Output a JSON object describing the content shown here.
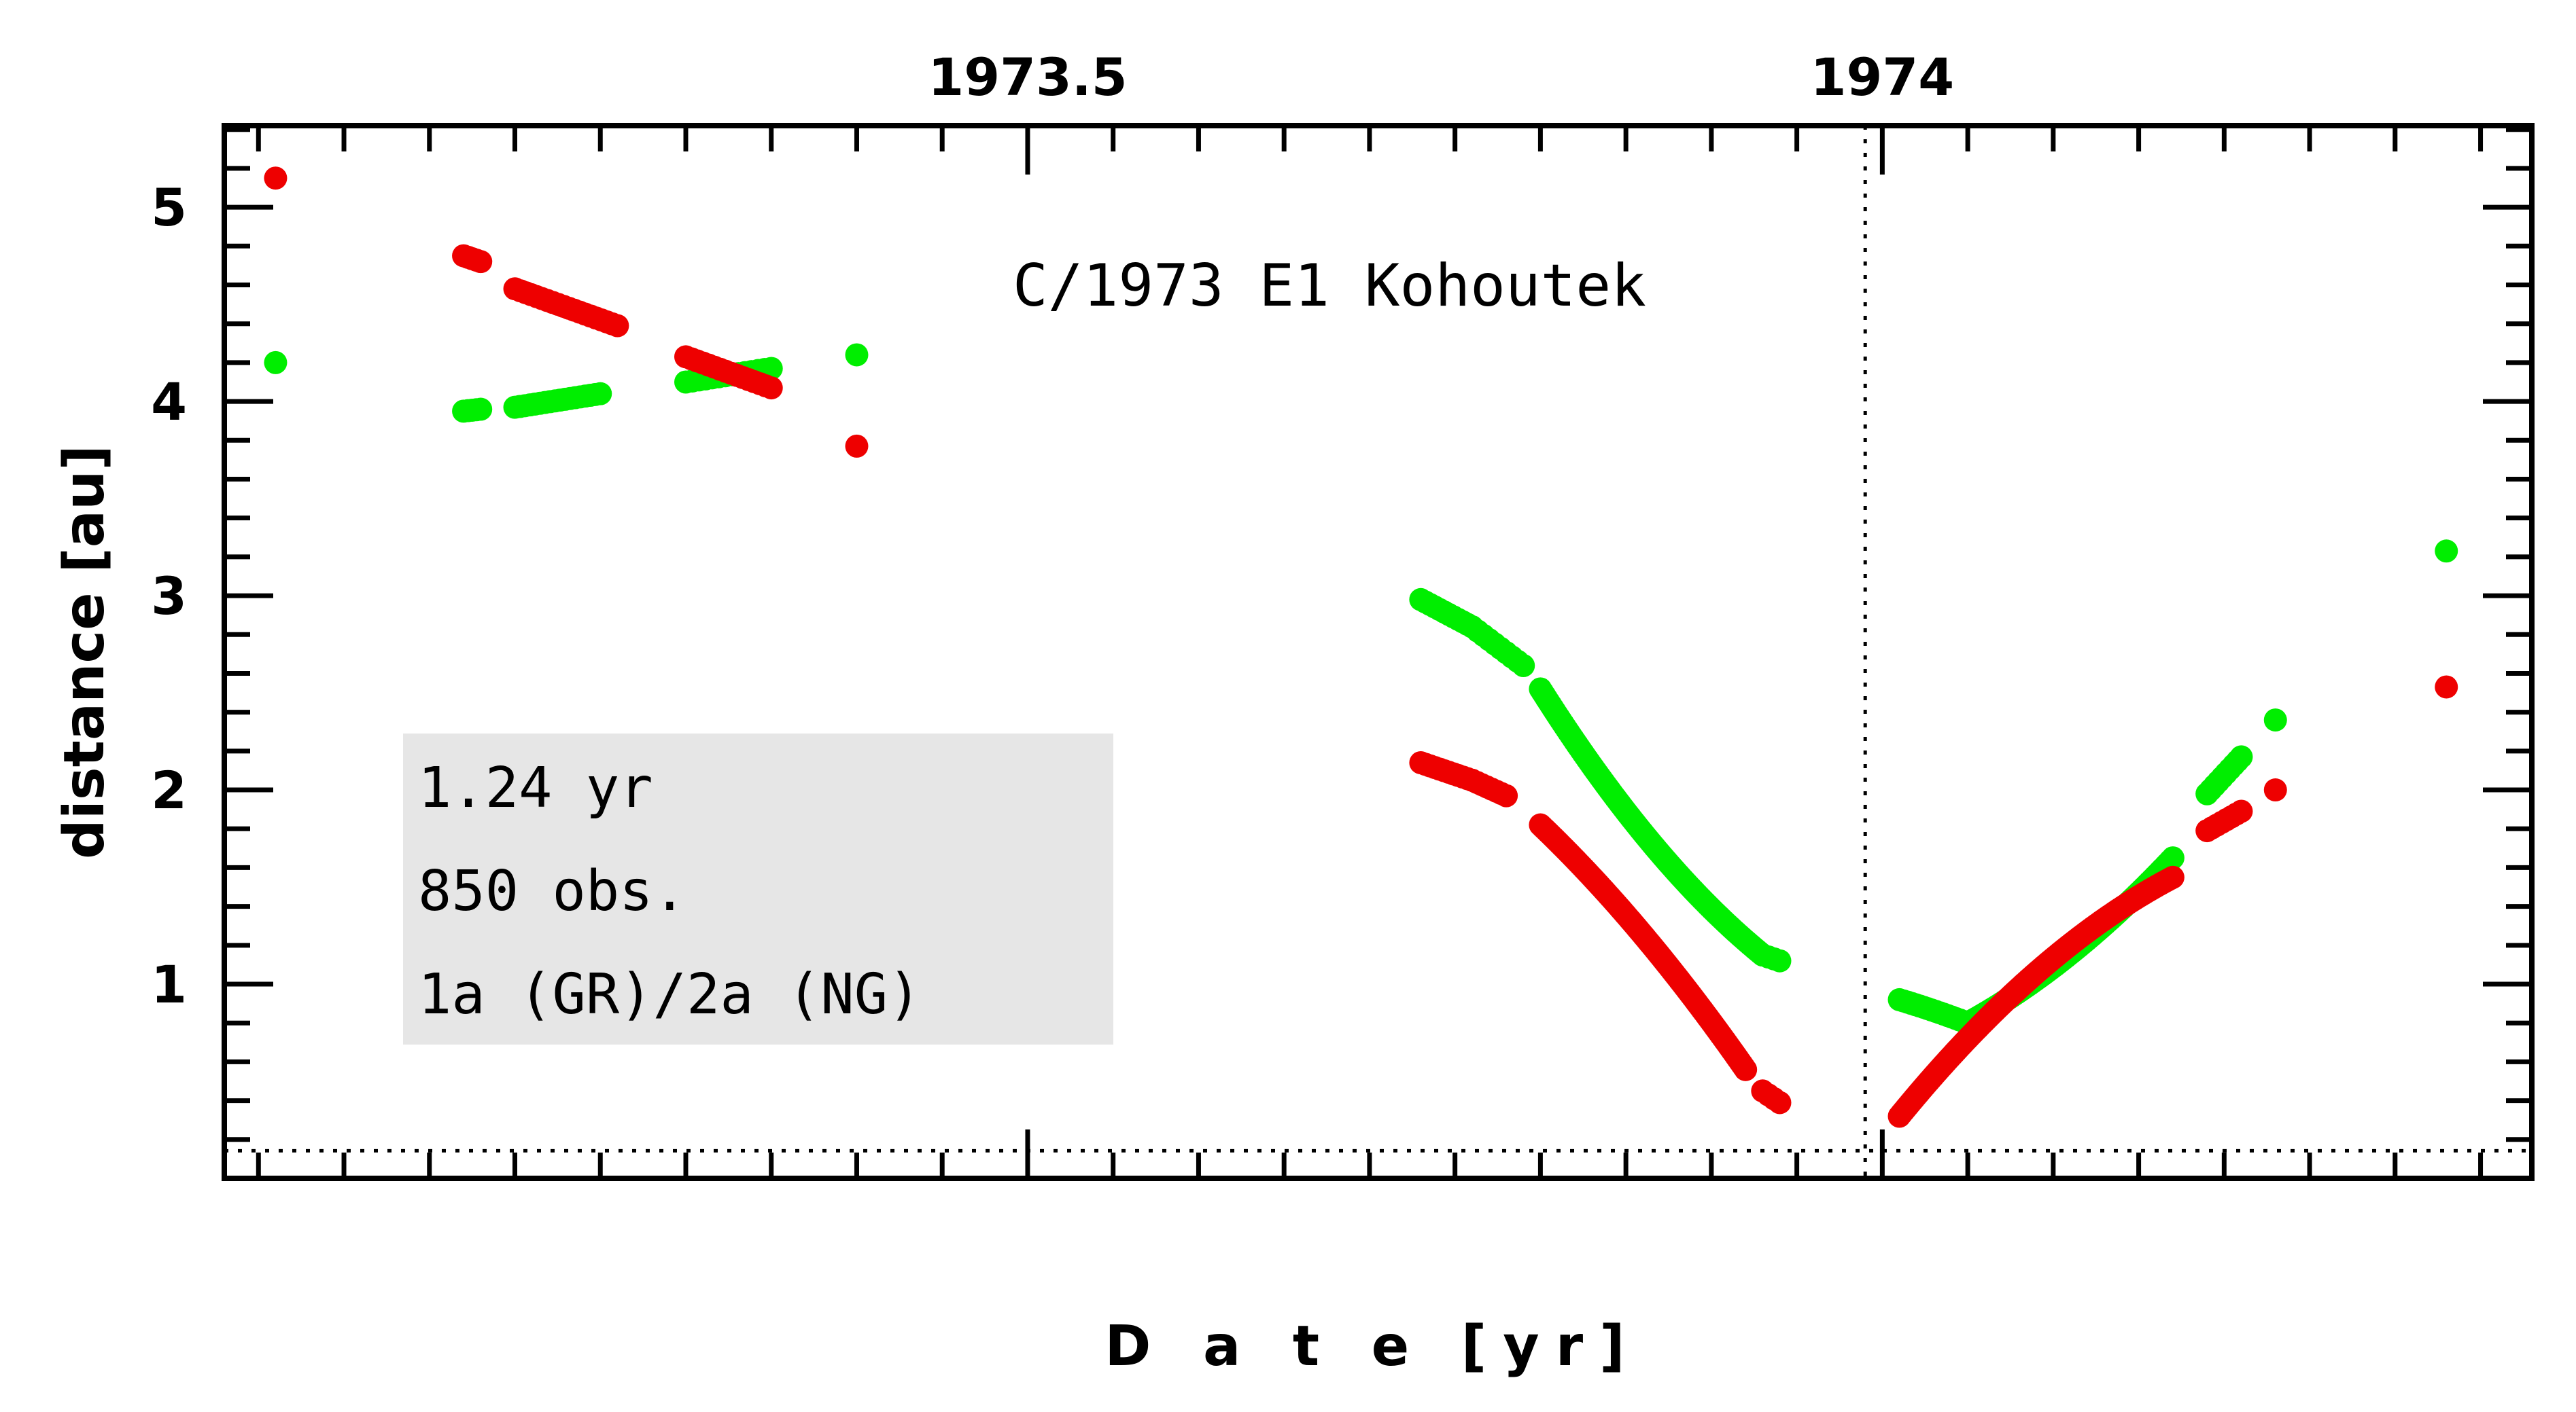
{
  "chart_data": {
    "type": "scatter",
    "title": "C/1973 E1 Kohoutek",
    "xlabel": "D a t e [yr]",
    "ylabel": "distance [au]",
    "xlim": [
      1973.03,
      1974.38
    ],
    "ylim": [
      0.0,
      5.42
    ],
    "top_axis_ticks": [
      {
        "value": 1973.5,
        "label": "1973.5"
      },
      {
        "value": 1974.0,
        "label": "1974"
      }
    ],
    "y_ticks": [
      {
        "value": 1,
        "label": "1"
      },
      {
        "value": 2,
        "label": "2"
      },
      {
        "value": 3,
        "label": "3"
      },
      {
        "value": 4,
        "label": "4"
      },
      {
        "value": 5,
        "label": "5"
      }
    ],
    "reference_lines": {
      "perihelion_date": 1973.99,
      "perihelion_distance": 0.142
    },
    "info_box": [
      "1.24 yr",
      "850 obs.",
      "1a (GR)/2a (NG)"
    ],
    "series": [
      {
        "color": "#00ee00",
        "segments": [
          {
            "x0": 1973.06,
            "x1": 1973.06,
            "y0": 4.2,
            "y1": 4.2,
            "n": 1
          },
          {
            "x0": 1973.17,
            "x1": 1973.18,
            "y0": 3.95,
            "y1": 3.96,
            "n": 5
          },
          {
            "x0": 1973.2,
            "x1": 1973.25,
            "y0": 3.97,
            "y1": 4.04,
            "n": 18
          },
          {
            "x0": 1973.3,
            "x1": 1973.35,
            "y0": 4.1,
            "y1": 4.17,
            "n": 14
          },
          {
            "x0": 1973.4,
            "x1": 1973.4,
            "y0": 4.24,
            "y1": 4.24,
            "n": 1
          },
          {
            "x0": 1973.73,
            "x1": 1973.76,
            "y0": 2.98,
            "y1": 2.84,
            "n": 12
          },
          {
            "x0": 1973.76,
            "x1": 1973.79,
            "y0": 2.84,
            "y1": 2.64,
            "n": 10
          },
          {
            "x0": 1973.8,
            "x1": 1973.93,
            "y0": 2.52,
            "y1": 1.15,
            "curve": -0.08,
            "n": 110
          },
          {
            "x0": 1973.93,
            "x1": 1973.94,
            "y0": 1.15,
            "y1": 1.12,
            "n": 4
          },
          {
            "x0": 1974.01,
            "x1": 1974.05,
            "y0": 0.92,
            "y1": 0.8,
            "curve": 0.03,
            "n": 18
          },
          {
            "x0": 1974.05,
            "x1": 1974.17,
            "y0": 0.8,
            "y1": 1.65,
            "curve": -0.08,
            "n": 80
          },
          {
            "x0": 1974.19,
            "x1": 1974.21,
            "y0": 1.98,
            "y1": 2.17,
            "n": 10
          },
          {
            "x0": 1974.23,
            "x1": 1974.23,
            "y0": 2.36,
            "y1": 2.36,
            "n": 1
          },
          {
            "x0": 1974.33,
            "x1": 1974.33,
            "y0": 3.23,
            "y1": 3.23,
            "n": 1
          }
        ]
      },
      {
        "color": "#ee0000",
        "segments": [
          {
            "x0": 1973.06,
            "x1": 1973.06,
            "y0": 5.15,
            "y1": 5.15,
            "n": 1
          },
          {
            "x0": 1973.17,
            "x1": 1973.18,
            "y0": 4.75,
            "y1": 4.72,
            "n": 5
          },
          {
            "x0": 1973.2,
            "x1": 1973.26,
            "y0": 4.58,
            "y1": 4.39,
            "n": 20
          },
          {
            "x0": 1973.3,
            "x1": 1973.35,
            "y0": 4.23,
            "y1": 4.07,
            "n": 16
          },
          {
            "x0": 1973.4,
            "x1": 1973.4,
            "y0": 3.77,
            "y1": 3.77,
            "n": 1
          },
          {
            "x0": 1973.73,
            "x1": 1973.76,
            "y0": 2.14,
            "y1": 2.05,
            "n": 12
          },
          {
            "x0": 1973.76,
            "x1": 1973.78,
            "y0": 2.05,
            "y1": 1.97,
            "n": 8
          },
          {
            "x0": 1973.8,
            "x1": 1973.92,
            "y0": 1.82,
            "y1": 0.56,
            "curve": 0.05,
            "n": 110
          },
          {
            "x0": 1973.93,
            "x1": 1973.94,
            "y0": 0.45,
            "y1": 0.39,
            "n": 4
          },
          {
            "x0": 1974.01,
            "x1": 1974.17,
            "y0": 0.32,
            "y1": 1.55,
            "curve": 0.1,
            "n": 130
          },
          {
            "x0": 1974.19,
            "x1": 1974.21,
            "y0": 1.79,
            "y1": 1.89,
            "n": 8
          },
          {
            "x0": 1974.23,
            "x1": 1974.23,
            "y0": 2.0,
            "y1": 2.0,
            "n": 1
          },
          {
            "x0": 1974.33,
            "x1": 1974.33,
            "y0": 2.53,
            "y1": 2.53,
            "n": 1
          }
        ]
      }
    ]
  }
}
